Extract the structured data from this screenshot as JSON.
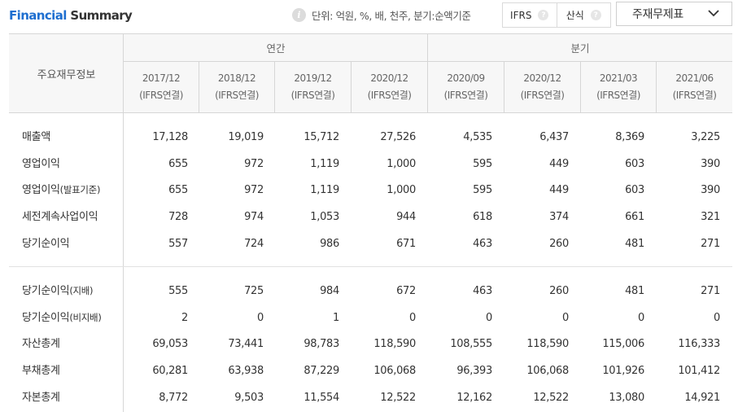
{
  "header": {
    "title_accent": "Financial",
    "title_rest": " Summary",
    "unit_text": "단위: 억원, %, 배, 천주, 분기:순액기준",
    "toggle": [
      "IFRS",
      "산식"
    ],
    "select_label": "주재무제표"
  },
  "table": {
    "corner_label": "주요재무정보",
    "group_annual": "연간",
    "group_quarter": "분기",
    "periods": [
      {
        "date": "2017/12",
        "basis": "(IFRS연결)"
      },
      {
        "date": "2018/12",
        "basis": "(IFRS연결)"
      },
      {
        "date": "2019/12",
        "basis": "(IFRS연결)"
      },
      {
        "date": "2020/12",
        "basis": "(IFRS연결)"
      },
      {
        "date": "2020/09",
        "basis": "(IFRS연결)"
      },
      {
        "date": "2020/12",
        "basis": "(IFRS연결)"
      },
      {
        "date": "2021/03",
        "basis": "(IFRS연결)"
      },
      {
        "date": "2021/06",
        "basis": "(IFRS연결)"
      }
    ],
    "section1": [
      {
        "label": "매출액",
        "suffix": "",
        "values": [
          "17,128",
          "19,019",
          "15,712",
          "27,526",
          "4,535",
          "6,437",
          "8,369",
          "3,225"
        ]
      },
      {
        "label": "영업이익",
        "suffix": "",
        "values": [
          "655",
          "972",
          "1,119",
          "1,000",
          "595",
          "449",
          "603",
          "390"
        ]
      },
      {
        "label": "영업이익",
        "suffix": "(발표기준)",
        "values": [
          "655",
          "972",
          "1,119",
          "1,000",
          "595",
          "449",
          "603",
          "390"
        ]
      },
      {
        "label": "세전계속사업이익",
        "suffix": "",
        "values": [
          "728",
          "974",
          "1,053",
          "944",
          "618",
          "374",
          "661",
          "321"
        ]
      },
      {
        "label": "당기순이익",
        "suffix": "",
        "values": [
          "557",
          "724",
          "986",
          "671",
          "463",
          "260",
          "481",
          "271"
        ]
      }
    ],
    "section2": [
      {
        "label": "당기순이익",
        "suffix": "(지배)",
        "values": [
          "555",
          "725",
          "984",
          "672",
          "463",
          "260",
          "481",
          "271"
        ]
      },
      {
        "label": "당기순이익",
        "suffix": "(비지배)",
        "values": [
          "2",
          "0",
          "1",
          "0",
          "0",
          "0",
          "0",
          "0"
        ]
      },
      {
        "label": "자산총계",
        "suffix": "",
        "values": [
          "69,053",
          "73,441",
          "98,783",
          "118,590",
          "108,555",
          "118,590",
          "115,006",
          "116,333"
        ]
      },
      {
        "label": "부채총계",
        "suffix": "",
        "values": [
          "60,281",
          "63,938",
          "87,229",
          "106,068",
          "96,393",
          "106,068",
          "101,926",
          "101,412"
        ]
      },
      {
        "label": "자본총계",
        "suffix": "",
        "values": [
          "8,772",
          "9,503",
          "11,554",
          "12,522",
          "12,162",
          "12,522",
          "13,080",
          "14,921"
        ]
      }
    ]
  }
}
